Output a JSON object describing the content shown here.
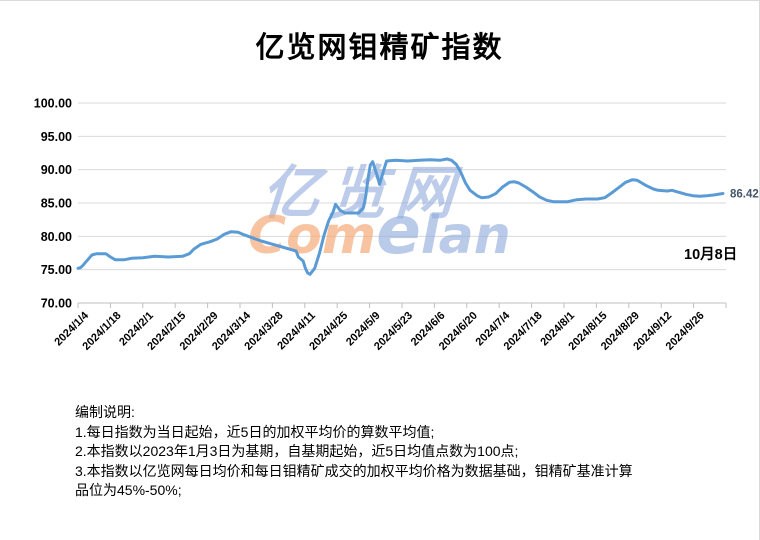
{
  "title": "亿览网钼精矿指数",
  "watermark": {
    "cn": "亿览网",
    "en_left": "Com",
    "en_mid": "e",
    "en_right": "lan"
  },
  "annotation": {
    "value_label": "86.42",
    "date_label": "10月8日"
  },
  "footnotes": [
    "编制说明:",
    "1.每日指数为当日起始，近5日的加权平均价的算数平均值;",
    "2.本指数以2023年1月3日为基期，自基期起始，近5日均值点数为100点;",
    "3.本指数以亿览网每日均价和每日钼精矿成交的加权平均价格为数据基础，钼精矿基准计算品位为45%-50%;"
  ],
  "colors": {
    "line": "#5B9BD5",
    "gridline": "#D9D9D9",
    "axis": "#BFBFBF",
    "value_label": "#44546A",
    "text": "#000000"
  },
  "chart_data": {
    "type": "line",
    "title": "亿览网钼精矿指数",
    "xlabel": "",
    "ylabel": "",
    "ylim": [
      70,
      100
    ],
    "ytick_step": 5,
    "grid": true,
    "legend": "none",
    "ytick_labels": [
      "70.00",
      "75.00",
      "80.00",
      "85.00",
      "90.00",
      "95.00",
      "100.00"
    ],
    "xtick_labels": [
      "2024/1/4",
      "2024/1/18",
      "2024/2/1",
      "2024/2/15",
      "2024/2/29",
      "2024/3/14",
      "2024/3/28",
      "2024/4/11",
      "2024/4/25",
      "2024/5/9",
      "2024/5/23",
      "2024/6/6",
      "2024/6/20",
      "2024/7/4",
      "2024/7/18",
      "2024/8/1",
      "2024/8/15",
      "2024/8/29",
      "2024/9/12",
      "2024/9/26"
    ],
    "x_start_date": "2024/1/4",
    "x_end_date": "2024/10/8",
    "x_days_per_tick": 14,
    "last_point": {
      "date": "2024/10/8",
      "value": 86.42
    },
    "points": [
      [
        "2024/1/4",
        75.2
      ],
      [
        "2024/1/5",
        75.3
      ],
      [
        "2024/1/6",
        75.6
      ],
      [
        "2024/1/8",
        76.4
      ],
      [
        "2024/1/10",
        77.2
      ],
      [
        "2024/1/12",
        77.4
      ],
      [
        "2024/1/16",
        77.4
      ],
      [
        "2024/1/18",
        76.9
      ],
      [
        "2024/1/20",
        76.5
      ],
      [
        "2024/1/24",
        76.5
      ],
      [
        "2024/1/27",
        76.7
      ],
      [
        "2024/2/1",
        76.8
      ],
      [
        "2024/2/6",
        77.0
      ],
      [
        "2024/2/12",
        76.9
      ],
      [
        "2024/2/18",
        77.0
      ],
      [
        "2024/2/21",
        77.4
      ],
      [
        "2024/2/23",
        78.1
      ],
      [
        "2024/2/26",
        78.8
      ],
      [
        "2024/3/1",
        79.2
      ],
      [
        "2024/3/4",
        79.6
      ],
      [
        "2024/3/7",
        80.3
      ],
      [
        "2024/3/10",
        80.7
      ],
      [
        "2024/3/13",
        80.6
      ],
      [
        "2024/3/15",
        80.3
      ],
      [
        "2024/3/19",
        79.8
      ],
      [
        "2024/3/23",
        79.3
      ],
      [
        "2024/3/27",
        78.9
      ],
      [
        "2024/4/1",
        78.4
      ],
      [
        "2024/4/5",
        78.0
      ],
      [
        "2024/4/7",
        77.8
      ],
      [
        "2024/4/8",
        76.9
      ],
      [
        "2024/4/10",
        76.3
      ],
      [
        "2024/4/11",
        75.2
      ],
      [
        "2024/4/12",
        74.5
      ],
      [
        "2024/4/13",
        74.3
      ],
      [
        "2024/4/15",
        75.2
      ],
      [
        "2024/4/17",
        77.4
      ],
      [
        "2024/4/19",
        80.1
      ],
      [
        "2024/4/21",
        82.3
      ],
      [
        "2024/4/23",
        83.7
      ],
      [
        "2024/4/24",
        84.8
      ],
      [
        "2024/4/26",
        83.9
      ],
      [
        "2024/4/28",
        83.5
      ],
      [
        "2024/5/4",
        83.5
      ],
      [
        "2024/5/6",
        84.3
      ],
      [
        "2024/5/7",
        86.0
      ],
      [
        "2024/5/8",
        88.6
      ],
      [
        "2024/5/9",
        90.7
      ],
      [
        "2024/5/10",
        91.2
      ],
      [
        "2024/5/12",
        89.0
      ],
      [
        "2024/5/13",
        87.8
      ],
      [
        "2024/5/15",
        90.2
      ],
      [
        "2024/5/16",
        91.3
      ],
      [
        "2024/5/20",
        91.4
      ],
      [
        "2024/5/25",
        91.3
      ],
      [
        "2024/5/30",
        91.4
      ],
      [
        "2024/6/4",
        91.5
      ],
      [
        "2024/6/8",
        91.4
      ],
      [
        "2024/6/11",
        91.6
      ],
      [
        "2024/6/13",
        91.4
      ],
      [
        "2024/6/15",
        90.8
      ],
      [
        "2024/6/17",
        89.6
      ],
      [
        "2024/6/19",
        88.0
      ],
      [
        "2024/6/21",
        86.9
      ],
      [
        "2024/6/24",
        86.1
      ],
      [
        "2024/6/26",
        85.8
      ],
      [
        "2024/6/29",
        85.9
      ],
      [
        "2024/7/2",
        86.4
      ],
      [
        "2024/7/5",
        87.4
      ],
      [
        "2024/7/8",
        88.1
      ],
      [
        "2024/7/10",
        88.2
      ],
      [
        "2024/7/12",
        88.0
      ],
      [
        "2024/7/15",
        87.4
      ],
      [
        "2024/7/18",
        86.7
      ],
      [
        "2024/7/21",
        85.9
      ],
      [
        "2024/7/24",
        85.4
      ],
      [
        "2024/7/27",
        85.2
      ],
      [
        "2024/8/2",
        85.2
      ],
      [
        "2024/8/6",
        85.5
      ],
      [
        "2024/8/10",
        85.6
      ],
      [
        "2024/8/15",
        85.6
      ],
      [
        "2024/8/18",
        85.8
      ],
      [
        "2024/8/21",
        86.5
      ],
      [
        "2024/8/24",
        87.3
      ],
      [
        "2024/8/27",
        88.1
      ],
      [
        "2024/8/30",
        88.5
      ],
      [
        "2024/9/1",
        88.4
      ],
      [
        "2024/9/3",
        88.0
      ],
      [
        "2024/9/5",
        87.6
      ],
      [
        "2024/9/8",
        87.1
      ],
      [
        "2024/9/10",
        86.9
      ],
      [
        "2024/9/14",
        86.8
      ],
      [
        "2024/9/16",
        86.9
      ],
      [
        "2024/9/19",
        86.6
      ],
      [
        "2024/9/22",
        86.3
      ],
      [
        "2024/9/25",
        86.1
      ],
      [
        "2024/9/28",
        86.0
      ],
      [
        "2024/10/1",
        86.1
      ],
      [
        "2024/10/4",
        86.2
      ],
      [
        "2024/10/8",
        86.42
      ]
    ]
  }
}
